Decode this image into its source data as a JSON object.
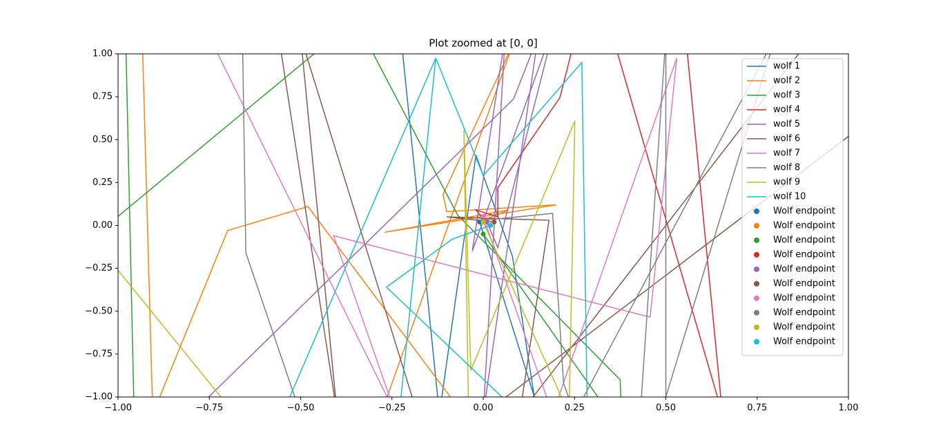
{
  "chart_data": {
    "type": "line",
    "title": "Plot zoomed at [0, 0]",
    "xlim": [
      -1,
      1
    ],
    "ylim": [
      -1,
      1
    ],
    "xticks": [
      {
        "value": -1,
        "label": "−1.00"
      },
      {
        "value": -0.75,
        "label": "−0.75"
      },
      {
        "value": -0.5,
        "label": "−0.50"
      },
      {
        "value": -0.25,
        "label": "−0.25"
      },
      {
        "value": 0,
        "label": "0.00"
      },
      {
        "value": 0.25,
        "label": "0.25"
      },
      {
        "value": 0.5,
        "label": "0.50"
      },
      {
        "value": 0.75,
        "label": "0.75"
      },
      {
        "value": 1,
        "label": "1.00"
      }
    ],
    "yticks": [
      {
        "value": -1,
        "label": "−1.00"
      },
      {
        "value": -0.75,
        "label": "−0.75"
      },
      {
        "value": -0.5,
        "label": "−0.50"
      },
      {
        "value": -0.25,
        "label": "−0.25"
      },
      {
        "value": 0,
        "label": "0.00"
      },
      {
        "value": 0.25,
        "label": "0.25"
      },
      {
        "value": 0.5,
        "label": "0.50"
      },
      {
        "value": 0.75,
        "label": "0.75"
      },
      {
        "value": 1,
        "label": "1.00"
      }
    ],
    "legend": "upper right",
    "series": [
      {
        "name": "wolf 1",
        "color": "#1f77b4",
        "x": [
          -0.23,
          -0.12,
          -0.02,
          0.08,
          0.14,
          -0.01
        ],
        "y": [
          1.2,
          -1.1,
          0.41,
          -0.18,
          -1.0,
          0.02
        ]
      },
      {
        "name": "wolf 2",
        "color": "#ff7f0e",
        "x": [
          -0.935,
          -0.905,
          -0.7,
          -0.48,
          -0.09,
          -0.28,
          0.08,
          -0.11,
          -0.1,
          0.2,
          -0.27,
          0.07,
          0.0
        ],
        "y": [
          1.2,
          -1.1,
          -0.03,
          0.11,
          -1.0,
          -1.1,
          1.05,
          0.18,
          0.08,
          0.12,
          -0.04,
          0.09,
          0.03
        ]
      },
      {
        "name": "wolf 3",
        "color": "#2ca02c",
        "x": [
          -0.98,
          -0.955,
          -1.2,
          -0.35,
          -0.07,
          0.375,
          0.38,
          0.0
        ],
        "y": [
          1.2,
          -1.2,
          -0.3,
          1.2,
          0.06,
          -0.9,
          -1.2,
          -0.05
        ]
      },
      {
        "name": "wolf 4",
        "color": "#d62728",
        "x": [
          0.55,
          0.655,
          0.3,
          0.21,
          0.04,
          0.04,
          -0.02,
          0.0
        ],
        "y": [
          1.2,
          -1.1,
          1.5,
          0.745,
          0.22,
          0.05,
          0.09,
          0.04
        ]
      },
      {
        "name": "wolf 5",
        "color": "#9467bd",
        "x": [
          -0.8,
          0.083,
          0.15,
          0.0,
          0.06,
          -0.03,
          0.2,
          0.04,
          0.01
        ],
        "y": [
          -1.1,
          0.737,
          1.1,
          -1.1,
          1.1,
          -0.15,
          1.2,
          -0.13,
          0.02
        ]
      },
      {
        "name": "wolf 6",
        "color": "#8c564b",
        "x": [
          -0.56,
          -0.4,
          -0.5,
          -0.18,
          0.05,
          1.05,
          1.1,
          0.9,
          0.1,
          0.18,
          -0.1,
          0.03
        ],
        "y": [
          1.1,
          -1.1,
          1.1,
          -1.1,
          -1.02,
          0.6,
          0.9,
          1.1,
          -1.1,
          0.03,
          0.05,
          0.02
        ]
      },
      {
        "name": "wolf 7",
        "color": "#e377c2",
        "x": [
          -0.75,
          -0.24,
          -0.41,
          0.457,
          0.53,
          0.19,
          0.0
        ],
        "y": [
          1.1,
          -1.1,
          -0.06,
          -0.535,
          0.975,
          -1.1,
          0.05
        ]
      },
      {
        "name": "wolf 8",
        "color": "#7f7f7f",
        "x": [
          -0.66,
          -0.65,
          -0.5,
          0.43,
          0.5,
          0.5,
          0.8,
          0.25,
          0.22,
          0.19,
          0.0
        ],
        "y": [
          1.2,
          -0.16,
          -1.1,
          -1.1,
          1.1,
          -1.0,
          1.1,
          -1.1,
          -0.92,
          0.07,
          0.03
        ]
      },
      {
        "name": "wolf 9",
        "color": "#bcbd22",
        "x": [
          -1.1,
          -0.68,
          -0.04,
          -0.053,
          -0.034,
          0.251,
          0.235,
          0.0
        ],
        "y": [
          0.0,
          -1.1,
          -1.1,
          0.557,
          -0.845,
          0.61,
          -1.1,
          0.02
        ]
      },
      {
        "name": "wolf 10",
        "color": "#17becf",
        "x": [
          -0.55,
          -0.13,
          -0.23,
          -0.13,
          0.0,
          0.27,
          0.285,
          0.15,
          -0.265,
          -0.085,
          0.02
        ],
        "y": [
          -1.1,
          0.975,
          -1.1,
          0.975,
          0.29,
          0.95,
          -1.1,
          -1.2,
          -0.36,
          -0.08,
          0.0
        ]
      }
    ],
    "endpoints": [
      {
        "name": "Wolf endpoint",
        "color": "#1f77b4",
        "x": -0.01,
        "y": 0.02
      },
      {
        "name": "Wolf endpoint",
        "color": "#ff7f0e",
        "x": 0.0,
        "y": 0.03
      },
      {
        "name": "Wolf endpoint",
        "color": "#2ca02c",
        "x": 0.0,
        "y": -0.05
      },
      {
        "name": "Wolf endpoint",
        "color": "#d62728",
        "x": 0.0,
        "y": 0.04
      },
      {
        "name": "Wolf endpoint",
        "color": "#9467bd",
        "x": 0.01,
        "y": 0.02
      },
      {
        "name": "Wolf endpoint",
        "color": "#8c564b",
        "x": 0.03,
        "y": 0.02
      },
      {
        "name": "Wolf endpoint",
        "color": "#e377c2",
        "x": 0.0,
        "y": 0.05
      },
      {
        "name": "Wolf endpoint",
        "color": "#7f7f7f",
        "x": 0.0,
        "y": 0.03
      },
      {
        "name": "Wolf endpoint",
        "color": "#bcbd22",
        "x": 0.0,
        "y": 0.02
      },
      {
        "name": "Wolf endpoint",
        "color": "#17becf",
        "x": 0.02,
        "y": 0.0
      }
    ]
  }
}
